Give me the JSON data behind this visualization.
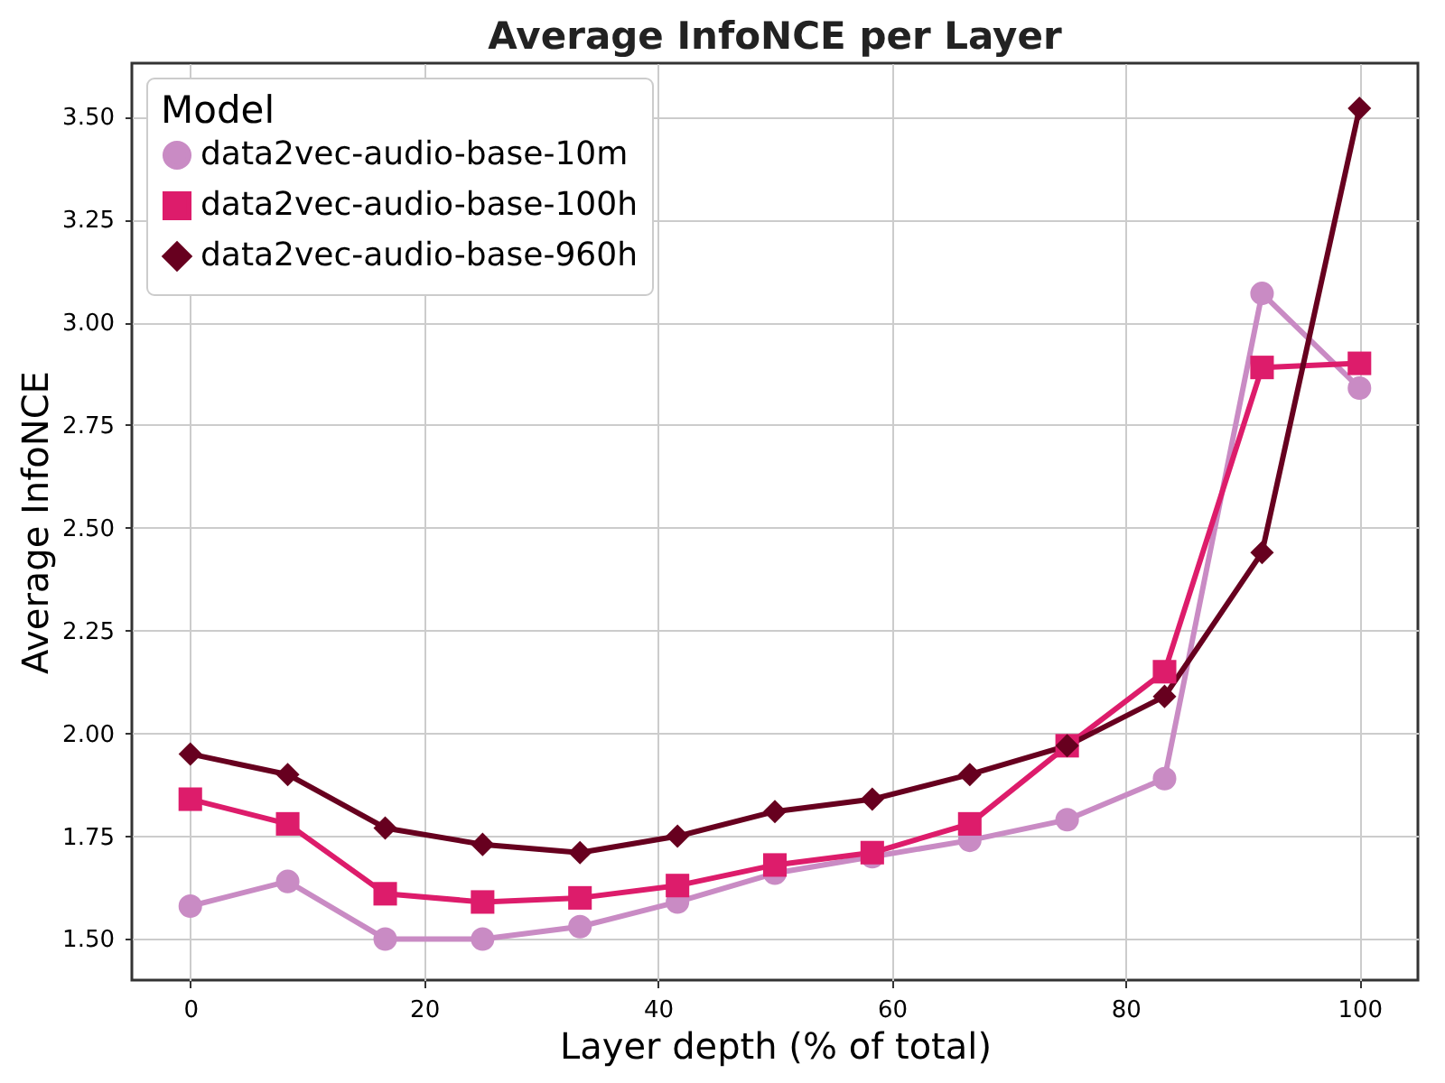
{
  "chart_data": {
    "type": "line",
    "title": "Average InfoNCE per Layer",
    "xlabel": "Layer depth (% of total)",
    "ylabel": "Average InfoNCE",
    "legend_title": "Model",
    "x": [
      0,
      8.33,
      16.67,
      25,
      33.33,
      41.67,
      50,
      58.33,
      66.67,
      75,
      83.33,
      91.67,
      100
    ],
    "series": [
      {
        "name": "data2vec-audio-base-10m",
        "color": "#c98bc4",
        "marker": "circle",
        "values": [
          1.58,
          1.64,
          1.5,
          1.5,
          1.53,
          1.59,
          1.66,
          1.7,
          1.74,
          1.79,
          1.89,
          3.07,
          2.84
        ]
      },
      {
        "name": "data2vec-audio-base-100h",
        "color": "#dd1c6b",
        "marker": "square",
        "values": [
          1.84,
          1.78,
          1.61,
          1.59,
          1.6,
          1.63,
          1.68,
          1.71,
          1.78,
          1.97,
          2.15,
          2.89,
          2.9
        ]
      },
      {
        "name": "data2vec-audio-base-960h",
        "color": "#67001f",
        "marker": "diamond",
        "values": [
          1.95,
          1.9,
          1.77,
          1.73,
          1.71,
          1.75,
          1.81,
          1.84,
          1.9,
          1.97,
          2.09,
          2.44,
          3.52
        ]
      }
    ],
    "xlim": [
      -5,
      105
    ],
    "ylim": [
      1.4,
      3.63
    ],
    "xticks": [
      0,
      20,
      40,
      60,
      80,
      100
    ],
    "yticks": [
      {
        "value": 1.5,
        "label": "1.50"
      },
      {
        "value": 1.75,
        "label": "1.75"
      },
      {
        "value": 2.0,
        "label": "2.00"
      },
      {
        "value": 2.25,
        "label": "2.25"
      },
      {
        "value": 2.5,
        "label": "2.50"
      },
      {
        "value": 2.75,
        "label": "2.75"
      },
      {
        "value": 3.0,
        "label": "3.00"
      },
      {
        "value": 3.25,
        "label": "3.25"
      },
      {
        "value": 3.5,
        "label": "3.50"
      }
    ],
    "grid": true,
    "legend": "top left",
    "line_style": "solid"
  }
}
